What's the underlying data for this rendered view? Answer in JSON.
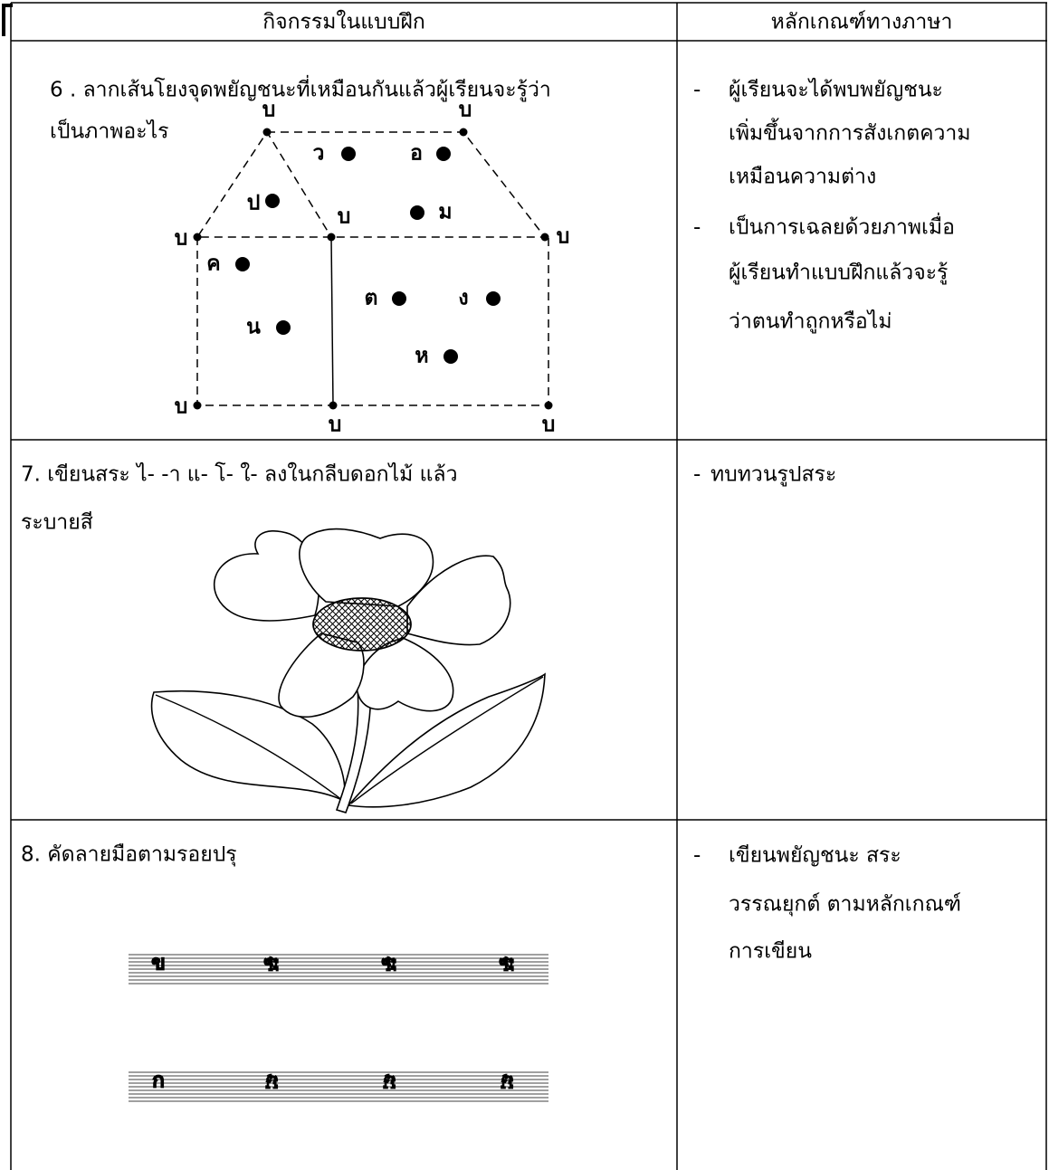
{
  "table": {
    "headers": [
      "กิจกรรมในแบบฝึก",
      "หลักเกณฑ์ทางภาษา"
    ],
    "rows": [
      {
        "activity": [
          "6 . ลากเส้นโยงจุดพยัญชนะที่เหมือนกันแล้วผู้เรียนจะรู้ว่า",
          "เป็นภาพอะไร"
        ],
        "principles": [
          [
            "ผู้เรียนจะได้พบพยัญชนะ",
            "เพิ่มขึ้นจากการสังเกตความ",
            "เหมือนความต่าง"
          ],
          [
            "เป็นการเฉลยด้วยภาพเมื่อ",
            "ผู้เรียนทำแบบฝึกแล้วจะรู้",
            "ว่าตนทำถูกหรือไม่"
          ]
        ]
      },
      {
        "activity": [
          "7. เขียนสระ ไ- -า แ- โ- ใ- ลงในกลีบดอกไม้ แล้ว",
          "ระบายสี"
        ],
        "principles": [
          [
            "ทบทวนรูปสระ"
          ]
        ]
      },
      {
        "activity": [
          "8. คัดลายมือตามรอยปรุ"
        ],
        "principles": [
          [
            "เขียนพยัญชนะ  สระ",
            "วรรณยุกต์ ตามหลักเกณฑ์",
            "การเขียน"
          ]
        ]
      }
    ]
  },
  "diagram": {
    "vertex_labels": [
      "บ",
      "บ",
      "บ",
      "บ",
      "บ",
      "บ",
      "บ",
      "บ"
    ],
    "letters": [
      "ว",
      "อ",
      "ป",
      "ม",
      "ค",
      "ต",
      "ง",
      "น",
      "ห"
    ]
  },
  "tracing": {
    "rows": [
      [
        "ข",
        "ข",
        "ข",
        "ข"
      ],
      [
        "ก",
        "ก",
        "ก",
        "ก"
      ]
    ]
  }
}
